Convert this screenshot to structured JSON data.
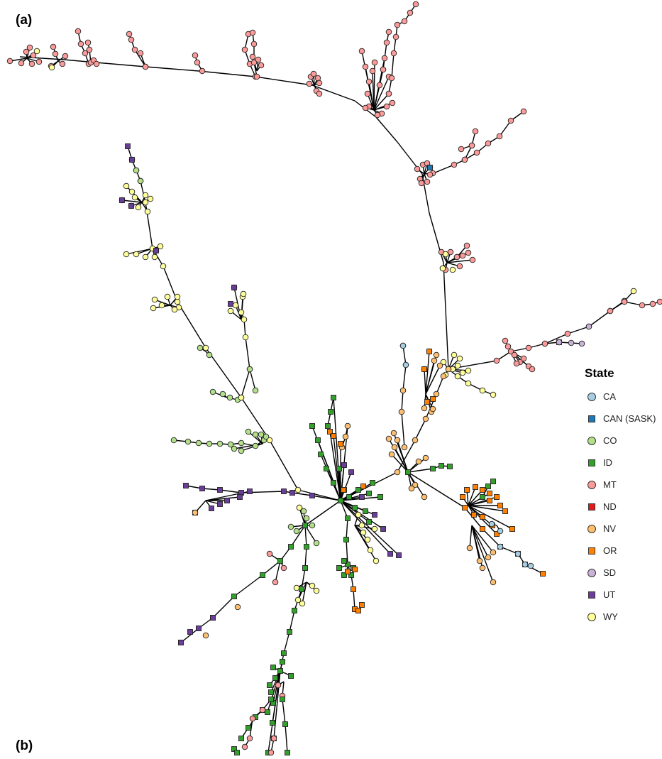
{
  "panels": {
    "a": "(a)",
    "b": "(b)"
  },
  "legend": {
    "title": "State",
    "items": [
      {
        "label": "CA",
        "shape": "circle",
        "color": "#a6cee3"
      },
      {
        "label": "CAN (SASK)",
        "shape": "square",
        "color": "#1f78b4"
      },
      {
        "label": "CO",
        "shape": "circle",
        "color": "#b2df8a"
      },
      {
        "label": "ID",
        "shape": "square",
        "color": "#33a02c"
      },
      {
        "label": "MT",
        "shape": "circle",
        "color": "#fb9a99"
      },
      {
        "label": "ND",
        "shape": "square",
        "color": "#e31a1c"
      },
      {
        "label": "NV",
        "shape": "circle",
        "color": "#fdbf6f"
      },
      {
        "label": "OR",
        "shape": "square",
        "color": "#ff7f00"
      },
      {
        "label": "SD",
        "shape": "circle",
        "color": "#cab2d6"
      },
      {
        "label": "UT",
        "shape": "square",
        "color": "#6a3d9a"
      },
      {
        "label": "WY",
        "shape": "circle",
        "color": "#ffff99"
      }
    ]
  }
}
